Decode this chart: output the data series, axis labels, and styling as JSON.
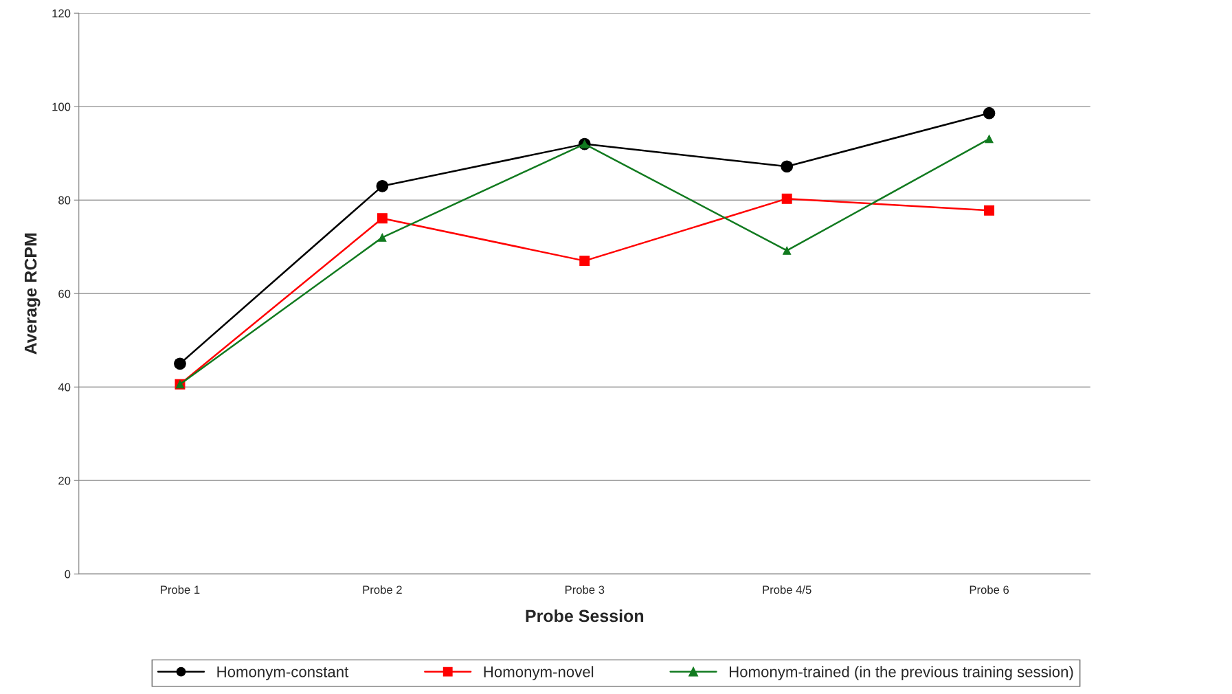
{
  "chart_data": {
    "type": "line",
    "xlabel": "Probe Session",
    "ylabel": "Average RCPM",
    "categories": [
      "Probe 1",
      "Probe 2",
      "Probe 3",
      "Probe 4/5",
      "Probe 6"
    ],
    "series": [
      {
        "name": "Homonym-constant",
        "color": "#000000",
        "marker": "circle",
        "values": [
          45,
          83,
          92,
          87.2,
          98.6
        ]
      },
      {
        "name": "Homonym-novel",
        "color": "#ff0000",
        "marker": "square",
        "values": [
          40.6,
          76.1,
          67,
          80.3,
          77.8
        ]
      },
      {
        "name": "Homonym-trained (in the previous training session)",
        "color": "#117a1f",
        "marker": "triangle",
        "values": [
          40.6,
          72,
          92,
          69.2,
          93.1
        ]
      }
    ],
    "ylim": [
      0,
      120
    ],
    "yticks": [
      0,
      20,
      40,
      60,
      80,
      100,
      120
    ],
    "grid": "y",
    "legend": "bottom",
    "line_style": "solid"
  }
}
